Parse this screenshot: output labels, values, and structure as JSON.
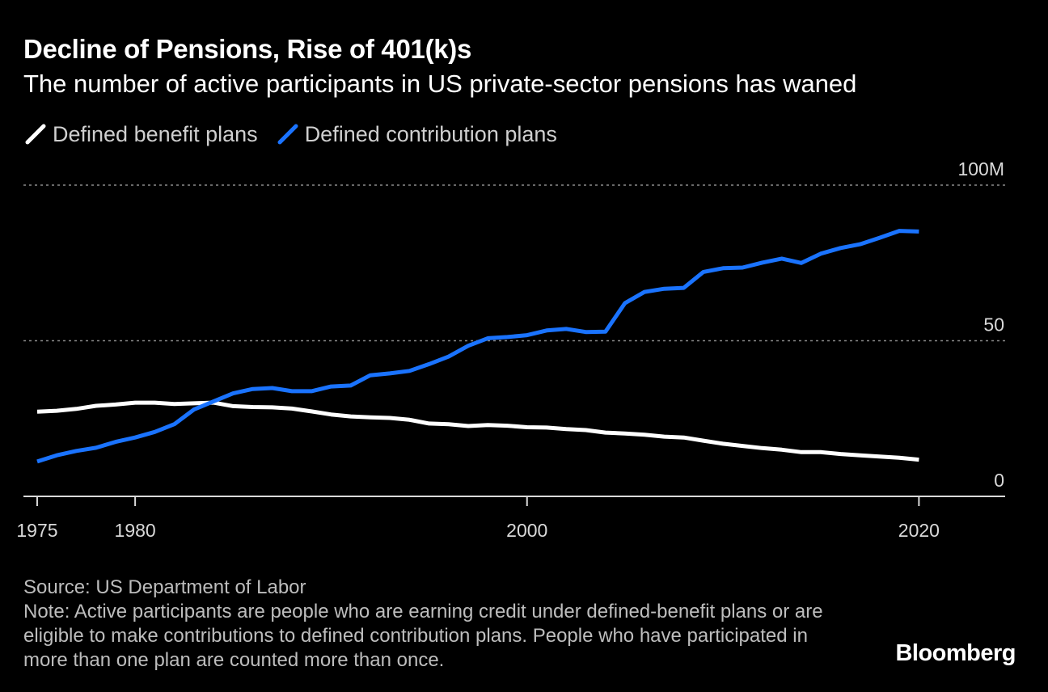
{
  "title": "Decline of Pensions, Rise of 401(k)s",
  "subtitle": "The number of active participants in US private-sector pensions has waned",
  "legend": {
    "series1": "Defined benefit plans",
    "series2": "Defined contribution plans"
  },
  "source": "Source: US Department of Labor",
  "note": "Note: Active participants are people who are earning credit under defined-benefit plans or are eligible to make contributions to defined contribution plans. People who have participated in more than one plan are counted more than once.",
  "logo": "Bloomberg",
  "colors": {
    "background": "#000000",
    "series1": "#ffffff",
    "series2": "#1a73ff",
    "grid": "#8a8a8a",
    "axis": "#d9d9d9"
  },
  "chart_data": {
    "type": "line",
    "title": "Decline of Pensions, Rise of 401(k)s",
    "subtitle": "The number of active participants in US private-sector pensions has waned",
    "xlabel": "",
    "ylabel": "",
    "xlim": [
      1974.3,
      2024.4
    ],
    "ylim": [
      0,
      100
    ],
    "x_ticks": [
      1975,
      1980,
      2000,
      2020
    ],
    "x_tick_labels": [
      "1975",
      "1980",
      "2000",
      "2020"
    ],
    "y_ticks": [
      0,
      50,
      100
    ],
    "y_tick_labels": [
      "0",
      "50",
      "100M"
    ],
    "grid": "horizontal dotted",
    "x": [
      1975,
      1976,
      1977,
      1978,
      1979,
      1980,
      1981,
      1982,
      1983,
      1984,
      1985,
      1986,
      1987,
      1988,
      1989,
      1990,
      1991,
      1992,
      1993,
      1994,
      1995,
      1996,
      1997,
      1998,
      1999,
      2000,
      2001,
      2002,
      2003,
      2004,
      2005,
      2006,
      2007,
      2008,
      2009,
      2010,
      2011,
      2012,
      2013,
      2014,
      2015,
      2016,
      2017,
      2018,
      2019,
      2020
    ],
    "series": [
      {
        "name": "Defined benefit plans",
        "color": "#ffffff",
        "values": [
          27.2,
          27.5,
          28.1,
          29.1,
          29.5,
          30.1,
          30.1,
          29.7,
          29.9,
          30.1,
          29.0,
          28.7,
          28.6,
          28.2,
          27.3,
          26.3,
          25.7,
          25.4,
          25.2,
          24.6,
          23.4,
          23.2,
          22.6,
          22.9,
          22.7,
          22.2,
          22.1,
          21.6,
          21.3,
          20.5,
          20.2,
          19.8,
          19.2,
          18.9,
          17.9,
          16.9,
          16.2,
          15.5,
          15.0,
          14.2,
          14.2,
          13.6,
          13.2,
          12.8,
          12.4,
          11.8
        ]
      },
      {
        "name": "Defined contribution plans",
        "color": "#1a73ff",
        "values": [
          11.2,
          13.2,
          14.6,
          15.6,
          17.5,
          18.9,
          20.7,
          23.2,
          27.9,
          30.5,
          33.1,
          34.5,
          34.8,
          33.8,
          33.8,
          35.3,
          35.6,
          38.9,
          39.5,
          40.3,
          42.5,
          44.9,
          48.4,
          50.8,
          51.2,
          51.8,
          53.3,
          53.8,
          52.8,
          52.9,
          62.1,
          65.7,
          66.7,
          67.0,
          72.1,
          73.3,
          73.5,
          75.1,
          76.4,
          75.0,
          78.0,
          79.8,
          81.0,
          83.1,
          85.3,
          85.1
        ]
      }
    ]
  }
}
